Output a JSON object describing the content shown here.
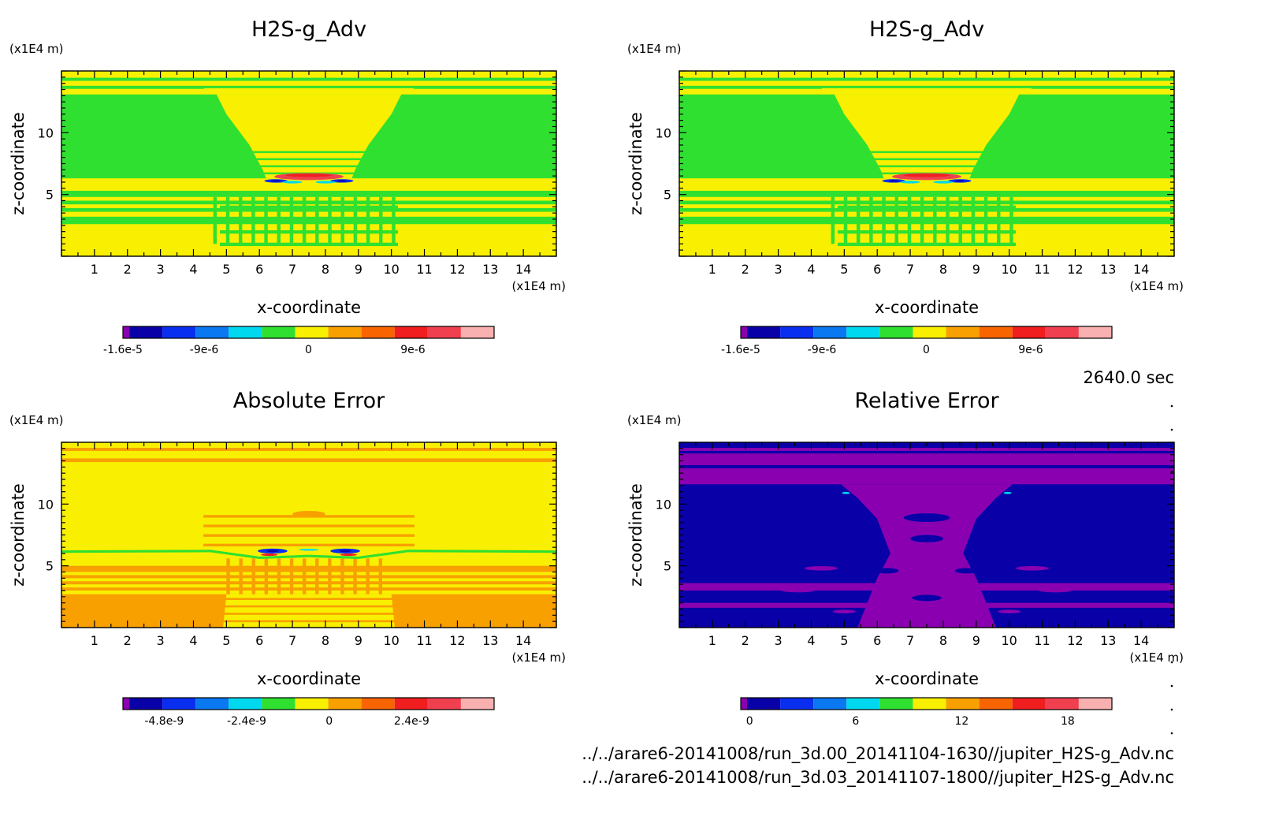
{
  "time_label": "2640.0 sec",
  "file_paths": [
    "../../arare6-20141008/run_3d.00_20141104-1630//jupiter_H2S-g_Adv.nc",
    "../../arare6-20141008/run_3d.03_20141107-1800//jupiter_H2S-g_Adv.nc"
  ],
  "palette": [
    "#8a00b0",
    "#0a00a8",
    "#0a2ef0",
    "#0a78f0",
    "#00d8f0",
    "#30e030",
    "#f8f000",
    "#f8a000",
    "#f86400",
    "#f01e1e",
    "#f04050",
    "#f8b0b0"
  ],
  "chart_data": [
    {
      "type": "heatmap",
      "title": "H2S-g_Adv",
      "xlabel": "x-coordinate",
      "ylabel": "z-coordinate",
      "x_unit": "(x1E4 m)",
      "y_unit": "(x1E4 m)",
      "xlim": [
        0,
        15
      ],
      "ylim": [
        0,
        15
      ],
      "x_ticks": [
        "1",
        "2",
        "3",
        "4",
        "5",
        "6",
        "7",
        "8",
        "9",
        "10",
        "11",
        "12",
        "13",
        "14"
      ],
      "y_ticks": [
        "5",
        "10"
      ],
      "colorbar": {
        "min": -1.6e-05,
        "max": 1.6e-05,
        "tick_labels": [
          "-1.6e-5",
          "-9e-6",
          "0",
          "9e-6"
        ],
        "tick_values": [
          -1.6e-05,
          -9e-06,
          0,
          9e-06
        ]
      },
      "pattern": "field"
    },
    {
      "type": "heatmap",
      "title": "H2S-g_Adv",
      "xlabel": "x-coordinate",
      "ylabel": "z-coordinate",
      "x_unit": "(x1E4 m)",
      "y_unit": "(x1E4 m)",
      "xlim": [
        0,
        15
      ],
      "ylim": [
        0,
        15
      ],
      "x_ticks": [
        "1",
        "2",
        "3",
        "4",
        "5",
        "6",
        "7",
        "8",
        "9",
        "10",
        "11",
        "12",
        "13",
        "14"
      ],
      "y_ticks": [
        "5",
        "10"
      ],
      "colorbar": {
        "min": -1.6e-05,
        "max": 1.6e-05,
        "tick_labels": [
          "-1.6e-5",
          "-9e-6",
          "0",
          "9e-6"
        ],
        "tick_values": [
          -1.6e-05,
          -9e-06,
          0,
          9e-06
        ]
      },
      "pattern": "field"
    },
    {
      "type": "heatmap",
      "title": "Absolute Error",
      "xlabel": "x-coordinate",
      "ylabel": "z-coordinate",
      "x_unit": "(x1E4 m)",
      "y_unit": "(x1E4 m)",
      "xlim": [
        0,
        15
      ],
      "ylim": [
        0,
        15
      ],
      "x_ticks": [
        "1",
        "2",
        "3",
        "4",
        "5",
        "6",
        "7",
        "8",
        "9",
        "10",
        "11",
        "12",
        "13",
        "14"
      ],
      "y_ticks": [
        "5",
        "10"
      ],
      "colorbar": {
        "min": -6e-09,
        "max": 4.8e-09,
        "tick_labels": [
          "-4.8e-9",
          "-2.4e-9",
          "0",
          "2.4e-9"
        ],
        "tick_values": [
          -4.8e-09,
          -2.4e-09,
          0,
          2.4e-09
        ]
      },
      "pattern": "abs"
    },
    {
      "type": "heatmap",
      "title": "Relative Error",
      "xlabel": "x-coordinate",
      "ylabel": "z-coordinate",
      "x_unit": "(x1E4 m)",
      "y_unit": "(x1E4 m)",
      "xlim": [
        0,
        15
      ],
      "ylim": [
        0,
        15
      ],
      "x_ticks": [
        "1",
        "2",
        "3",
        "4",
        "5",
        "6",
        "7",
        "8",
        "9",
        "10",
        "11",
        "12",
        "13",
        "14"
      ],
      "y_ticks": [
        "5",
        "10"
      ],
      "colorbar": {
        "min": -0.5,
        "max": 20.5,
        "tick_labels": [
          "0",
          "6",
          "12",
          "18"
        ],
        "tick_values": [
          0,
          6,
          12,
          18
        ]
      },
      "pattern": "rel"
    }
  ]
}
